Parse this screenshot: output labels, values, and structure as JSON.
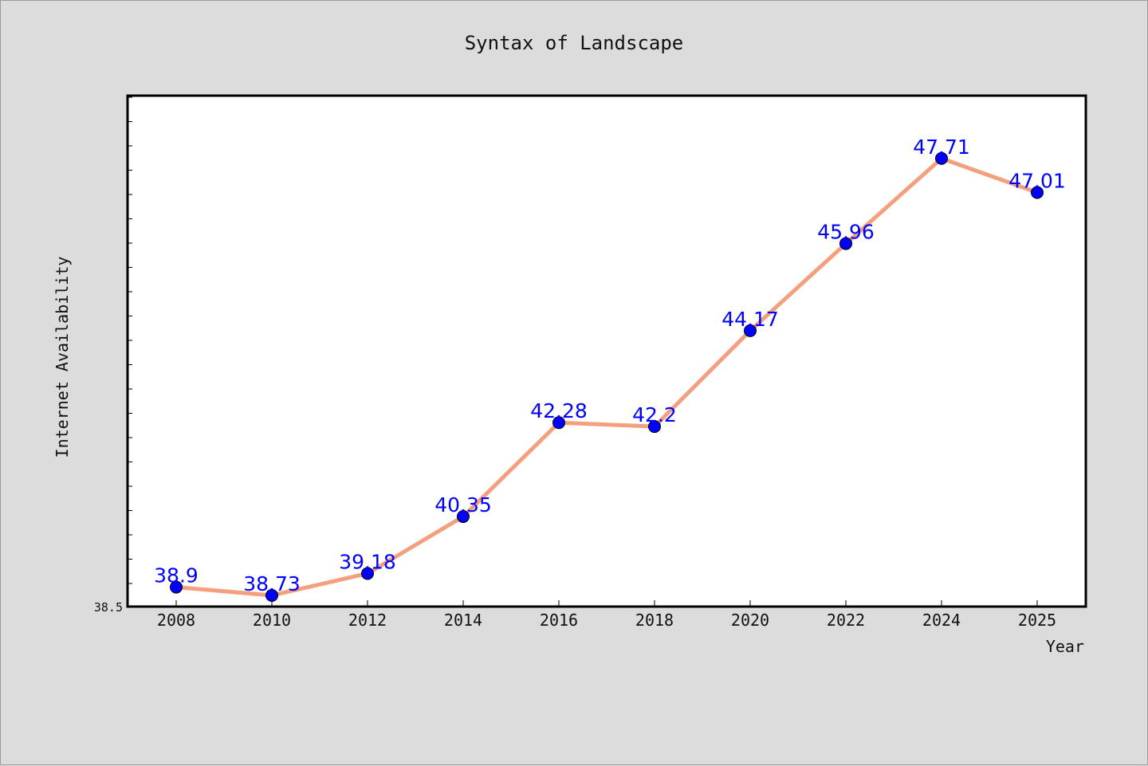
{
  "chart_data": {
    "type": "line",
    "title": "Syntax of Landscape",
    "xlabel": "Year",
    "ylabel": "Internet Availability",
    "x": [
      "2008",
      "2010",
      "2012",
      "2014",
      "2016",
      "2018",
      "2020",
      "2022",
      "2024",
      "2025"
    ],
    "series": [
      {
        "values": [
          38.9,
          38.73,
          39.18,
          40.35,
          42.28,
          42.2,
          44.17,
          45.96,
          47.71,
          47.01
        ]
      }
    ],
    "data_labels": [
      "38.9",
      "38.73",
      "39.18",
      "40.35",
      "42.28",
      "42.2",
      "44.17",
      "45.96",
      "47.71",
      "47.01"
    ],
    "y_tick_labels": [
      "38.5"
    ],
    "ylim": [
      38.5,
      49.0
    ],
    "grid": false,
    "legend": "none",
    "colors": {
      "line": "#f4a07e",
      "marker": "#0000ff",
      "label": "#0000ff",
      "plot_background": "#ffffff",
      "figure_background": "#dcdcdc"
    }
  }
}
